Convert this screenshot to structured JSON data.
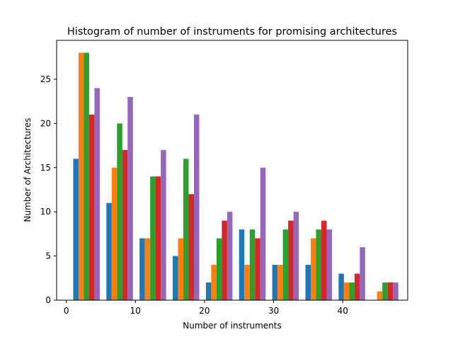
{
  "chart_data": {
    "type": "bar",
    "title": "Histogram of number of instruments for promising architectures",
    "xlabel": "Number of instruments",
    "ylabel": "Number of Architectures",
    "xlim": [
      -1.4,
      49.4
    ],
    "ylim": [
      0,
      29.4
    ],
    "xticks": [
      0,
      10,
      20,
      30,
      40
    ],
    "yticks": [
      0,
      5,
      10,
      15,
      20,
      25
    ],
    "bin_edges": [
      1,
      5.8,
      10.6,
      15.4,
      20.2,
      25,
      29.8,
      34.6,
      39.4,
      44.2,
      49
    ],
    "grid": false,
    "legend": "none",
    "series": [
      {
        "color": "#1f77b4",
        "values": [
          16,
          11,
          7,
          5,
          2,
          8,
          4,
          4,
          3,
          0
        ]
      },
      {
        "color": "#ff7f0e",
        "values": [
          28,
          15,
          7,
          7,
          4,
          4,
          4,
          7,
          2,
          1
        ]
      },
      {
        "color": "#2ca02c",
        "values": [
          28,
          20,
          14,
          16,
          7,
          8,
          8,
          8,
          2,
          2
        ]
      },
      {
        "color": "#d62728",
        "values": [
          21,
          17,
          14,
          12,
          9,
          7,
          9,
          9,
          3,
          2
        ]
      },
      {
        "color": "#9467bd",
        "values": [
          24,
          23,
          17,
          21,
          10,
          15,
          10,
          8,
          6,
          2
        ]
      }
    ]
  }
}
